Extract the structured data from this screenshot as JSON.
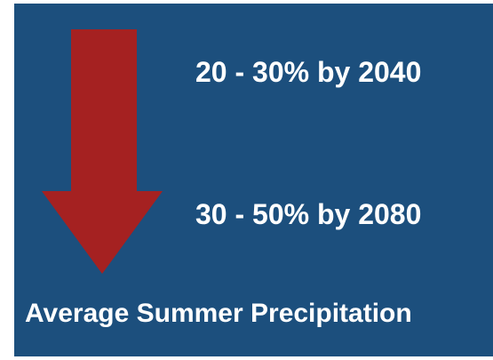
{
  "items": [
    "20 - 30% by 2040",
    "30 - 50% by 2080"
  ],
  "caption": "Average Summer Precipitation"
}
